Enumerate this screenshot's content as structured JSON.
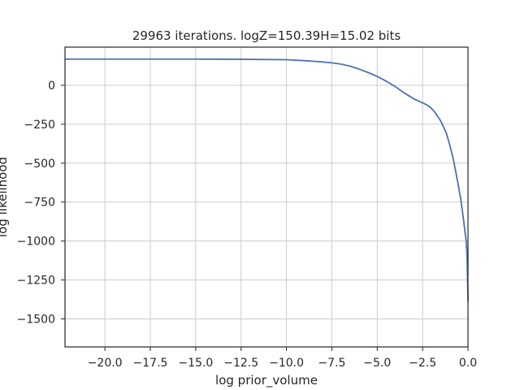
{
  "chart_data": {
    "type": "line",
    "title": "29963 iterations. logZ=150.39H=15.02 bits",
    "xlabel": "log prior_volume",
    "ylabel": "log likelihood",
    "xlim": [
      -22.2,
      0.0
    ],
    "ylim": [
      -1680,
      245
    ],
    "grid": true,
    "color": "#4c72b0",
    "x_ticks": [
      -20.0,
      -17.5,
      -15.0,
      -12.5,
      -10.0,
      -7.5,
      -5.0,
      -2.5,
      0.0
    ],
    "x_tick_labels": [
      "−20.0",
      "−17.5",
      "−15.0",
      "−12.5",
      "−10.0",
      "−7.5",
      "−5.0",
      "−2.5",
      "0.0"
    ],
    "y_ticks": [
      0,
      -250,
      -500,
      -750,
      -1000,
      -1250,
      -1500
    ],
    "y_tick_labels": [
      "0",
      "−250",
      "−500",
      "−750",
      "−1000",
      "−1250",
      "−1500"
    ],
    "series": [
      {
        "x": [
          -22.2,
          -20.0,
          -17.5,
          -15.0,
          -12.5,
          -10.0,
          -9.0,
          -8.0,
          -7.5,
          -7.0,
          -6.5,
          -6.0,
          -5.5,
          -5.0,
          -4.5,
          -4.0,
          -3.5,
          -3.0,
          -2.7,
          -2.5,
          -2.2,
          -2.0,
          -1.8,
          -1.5,
          -1.2,
          -1.0,
          -0.8,
          -0.6,
          -0.4,
          -0.25,
          -0.1,
          -0.05,
          0.0
        ],
        "y": [
          168,
          168,
          168,
          168,
          167,
          164,
          158,
          150,
          144,
          136,
          123,
          104,
          82,
          57,
          26,
          -9,
          -50,
          -86,
          -103,
          -113,
          -130,
          -150,
          -176,
          -230,
          -305,
          -385,
          -480,
          -600,
          -730,
          -860,
          -1000,
          -1100,
          -1390
        ]
      }
    ]
  }
}
